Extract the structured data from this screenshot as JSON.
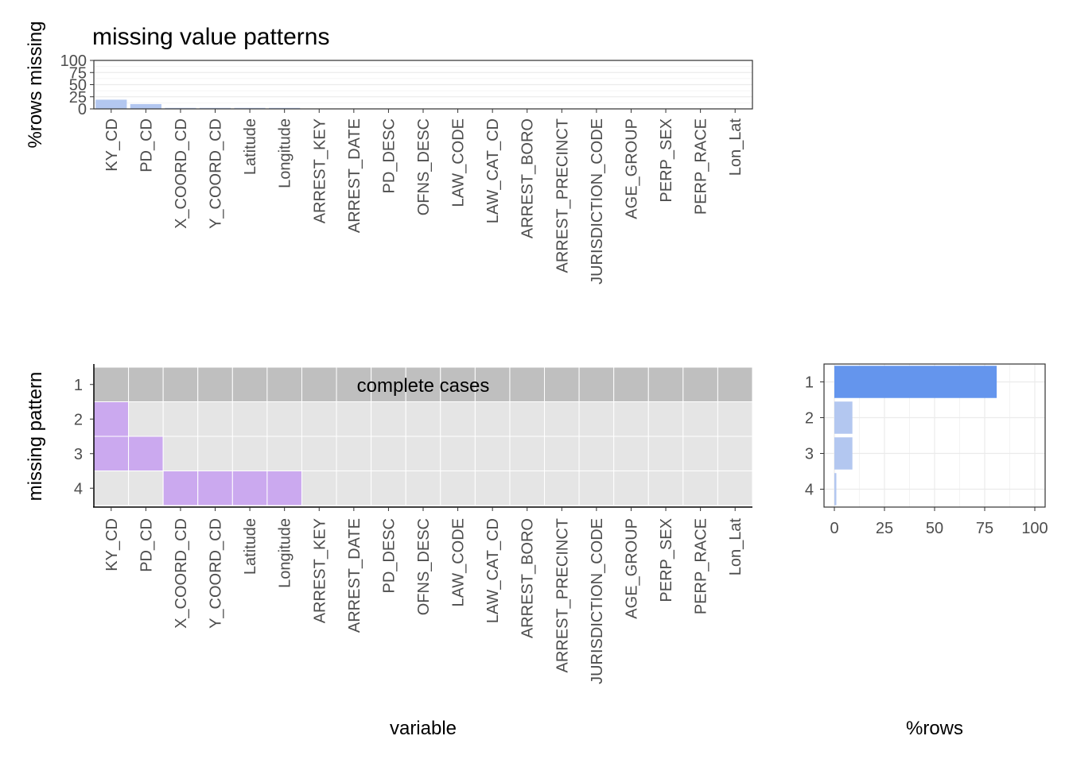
{
  "title": "missing value patterns",
  "colors": {
    "top_bar": "#b3c7f0",
    "pattern_missing": "#cba9ef",
    "pattern_present": "#e5e5e5",
    "complete_row": "#bfbfbf",
    "count_bar_complete": "#6495ed",
    "count_bar": "#b3c7f0",
    "grid": "#ebebeb"
  },
  "chart_data": [
    {
      "type": "bar",
      "panel": "top",
      "ylabel": "%rows missing",
      "xlabel": "",
      "ylim": [
        0,
        100
      ],
      "yticks": [
        0,
        25,
        50,
        75,
        100
      ],
      "grid": true,
      "categories": [
        "KY_CD",
        "PD_CD",
        "X_COORD_CD",
        "Y_COORD_CD",
        "Latitude",
        "Longitude",
        "ARREST_KEY",
        "ARREST_DATE",
        "PD_DESC",
        "OFNS_DESC",
        "LAW_CODE",
        "LAW_CAT_CD",
        "ARREST_BORO",
        "ARREST_PRECINCT",
        "JURISDICTION_CODE",
        "AGE_GROUP",
        "PERP_SEX",
        "PERP_RACE",
        "Lon_Lat"
      ],
      "values": [
        19,
        10,
        2,
        2,
        2,
        2,
        0,
        0,
        0,
        0,
        0,
        0,
        0,
        0,
        0,
        0,
        0,
        0,
        0
      ]
    },
    {
      "type": "heatmap",
      "panel": "main",
      "xlabel": "variable",
      "ylabel": "missing pattern",
      "rows": [
        "1",
        "2",
        "3",
        "4"
      ],
      "columns": [
        "KY_CD",
        "PD_CD",
        "X_COORD_CD",
        "Y_COORD_CD",
        "Latitude",
        "Longitude",
        "ARREST_KEY",
        "ARREST_DATE",
        "PD_DESC",
        "OFNS_DESC",
        "LAW_CODE",
        "LAW_CAT_CD",
        "ARREST_BORO",
        "ARREST_PRECINCT",
        "JURISDICTION_CODE",
        "AGE_GROUP",
        "PERP_SEX",
        "PERP_RACE",
        "Lon_Lat"
      ],
      "missing": [
        [
          0,
          0,
          0,
          0,
          0,
          0,
          0,
          0,
          0,
          0,
          0,
          0,
          0,
          0,
          0,
          0,
          0,
          0,
          0
        ],
        [
          1,
          0,
          0,
          0,
          0,
          0,
          0,
          0,
          0,
          0,
          0,
          0,
          0,
          0,
          0,
          0,
          0,
          0,
          0
        ],
        [
          1,
          1,
          0,
          0,
          0,
          0,
          0,
          0,
          0,
          0,
          0,
          0,
          0,
          0,
          0,
          0,
          0,
          0,
          0
        ],
        [
          0,
          0,
          1,
          1,
          1,
          1,
          0,
          0,
          0,
          0,
          0,
          0,
          0,
          0,
          0,
          0,
          0,
          0,
          0
        ]
      ],
      "complete_row": "1",
      "annotation": "complete cases"
    },
    {
      "type": "bar",
      "panel": "right",
      "orientation": "horizontal",
      "xlabel": "%rows",
      "ylabel": "",
      "xlim": [
        0,
        100
      ],
      "xticks": [
        0,
        25,
        50,
        75,
        100
      ],
      "grid": true,
      "categories": [
        "1",
        "2",
        "3",
        "4"
      ],
      "values": [
        81,
        9,
        9,
        1
      ],
      "highlight": "1"
    }
  ]
}
